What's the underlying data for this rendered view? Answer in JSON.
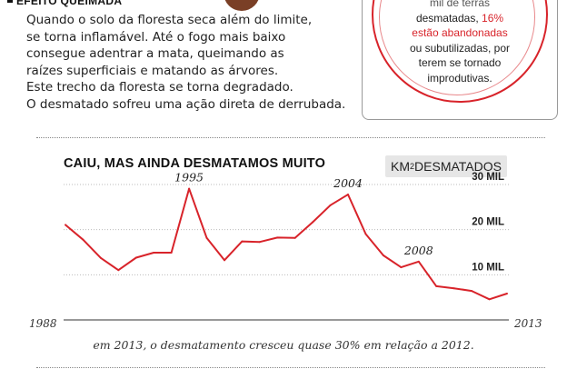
{
  "effect": {
    "title": "EFEITO QUEIMADA",
    "lines": [
      "Quando o solo da floresta seca além do limite,",
      "se torna inflamável. Até o  fogo mais baixo",
      "consegue adentrar a mata, queimando as",
      "raízes superficiais e matando as árvores.",
      "Este trecho da floresta se torna degradado.",
      "O desmatado sofreu uma ação direta de derrubada."
    ]
  },
  "info_box": {
    "line1": "mil de terras",
    "line2_a": "desmatadas,",
    "line2_b": "16%",
    "line3": "estão abandonadas",
    "line4": "ou subutilizadas, por",
    "line5": "terem se tornado",
    "line6": "improdutivas."
  },
  "chart_data": {
    "type": "line",
    "title": "CAIU, MAS AINDA DESMATAMOS MUITO",
    "unit_label_a": "KM",
    "unit_label_sup": "2",
    "unit_label_b": "DESMATADOS",
    "x": [
      1988,
      1989,
      1990,
      1991,
      1992,
      1993,
      1994,
      1995,
      1996,
      1997,
      1998,
      1999,
      2000,
      2001,
      2002,
      2003,
      2004,
      2005,
      2006,
      2007,
      2008,
      2009,
      2010,
      2011,
      2012,
      2013
    ],
    "values": [
      21050,
      17770,
      13730,
      11030,
      13786,
      14896,
      14896,
      29059,
      18161,
      13227,
      17383,
      17259,
      18226,
      18165,
      21651,
      25396,
      27772,
      19014,
      14286,
      11651,
      12911,
      7464,
      7000,
      6418,
      4571,
      5843
    ],
    "ylim": [
      0,
      32000
    ],
    "y_ticks": [
      10000,
      20000,
      30000
    ],
    "y_tick_labels": [
      "10 MIL",
      "20 MIL",
      "30 MIL"
    ],
    "x_start_label": "1988",
    "x_end_label": "2013",
    "annotations": [
      {
        "label": "1995",
        "year": 1995
      },
      {
        "label": "2004",
        "year": 2004
      },
      {
        "label": "2008",
        "year": 2008
      }
    ],
    "line_color": "#d8232a",
    "footnote": "em 2013, o desmatamento cresceu quase 30% em relação a 2012."
  }
}
